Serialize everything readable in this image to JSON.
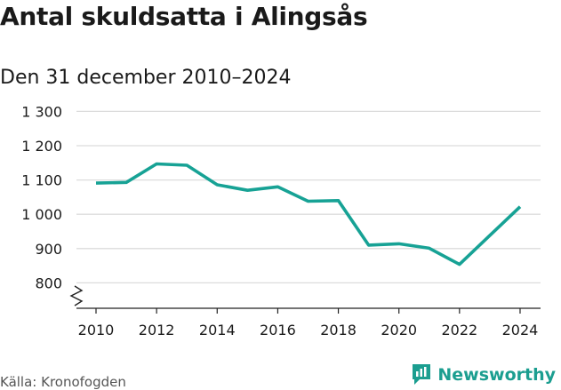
{
  "header": {
    "title": "Antal skuldsatta i Alingsås",
    "subtitle": "Den 31 december 2010–2024"
  },
  "footer": {
    "source": "Källa: Kronofogden",
    "brand": "Newsworthy"
  },
  "colors": {
    "line": "#17a295",
    "grid": "#dcdcdc",
    "brand": "#1b9e90"
  },
  "chart_data": {
    "type": "line",
    "title": "Antal skuldsatta i Alingsås",
    "subtitle": "Den 31 december 2010–2024",
    "xlabel": "",
    "ylabel": "",
    "grid": true,
    "x": [
      2010,
      2011,
      2012,
      2013,
      2014,
      2015,
      2016,
      2017,
      2018,
      2019,
      2020,
      2021,
      2022,
      2023,
      2024
    ],
    "series": [
      {
        "name": "Antal skuldsatta",
        "values": [
          1091,
          1093,
          1147,
          1143,
          1086,
          1070,
          1080,
          1038,
          1040,
          910,
          914,
          901,
          854,
          938,
          1022
        ]
      }
    ],
    "xlim": [
      2009.3,
      2024.7
    ],
    "ylim": [
      775,
      1300
    ],
    "y_ticks": [
      800,
      900,
      1000,
      1100,
      1200,
      1300
    ],
    "y_tick_labels": [
      "800",
      "900",
      "1 000",
      "1 100",
      "1 200",
      "1 300"
    ],
    "x_ticks": [
      2010,
      2012,
      2014,
      2016,
      2018,
      2020,
      2022,
      2024
    ],
    "x_tick_labels": [
      "2010",
      "2012",
      "2014",
      "2016",
      "2018",
      "2020",
      "2022",
      "2024"
    ],
    "axis_break": true
  }
}
